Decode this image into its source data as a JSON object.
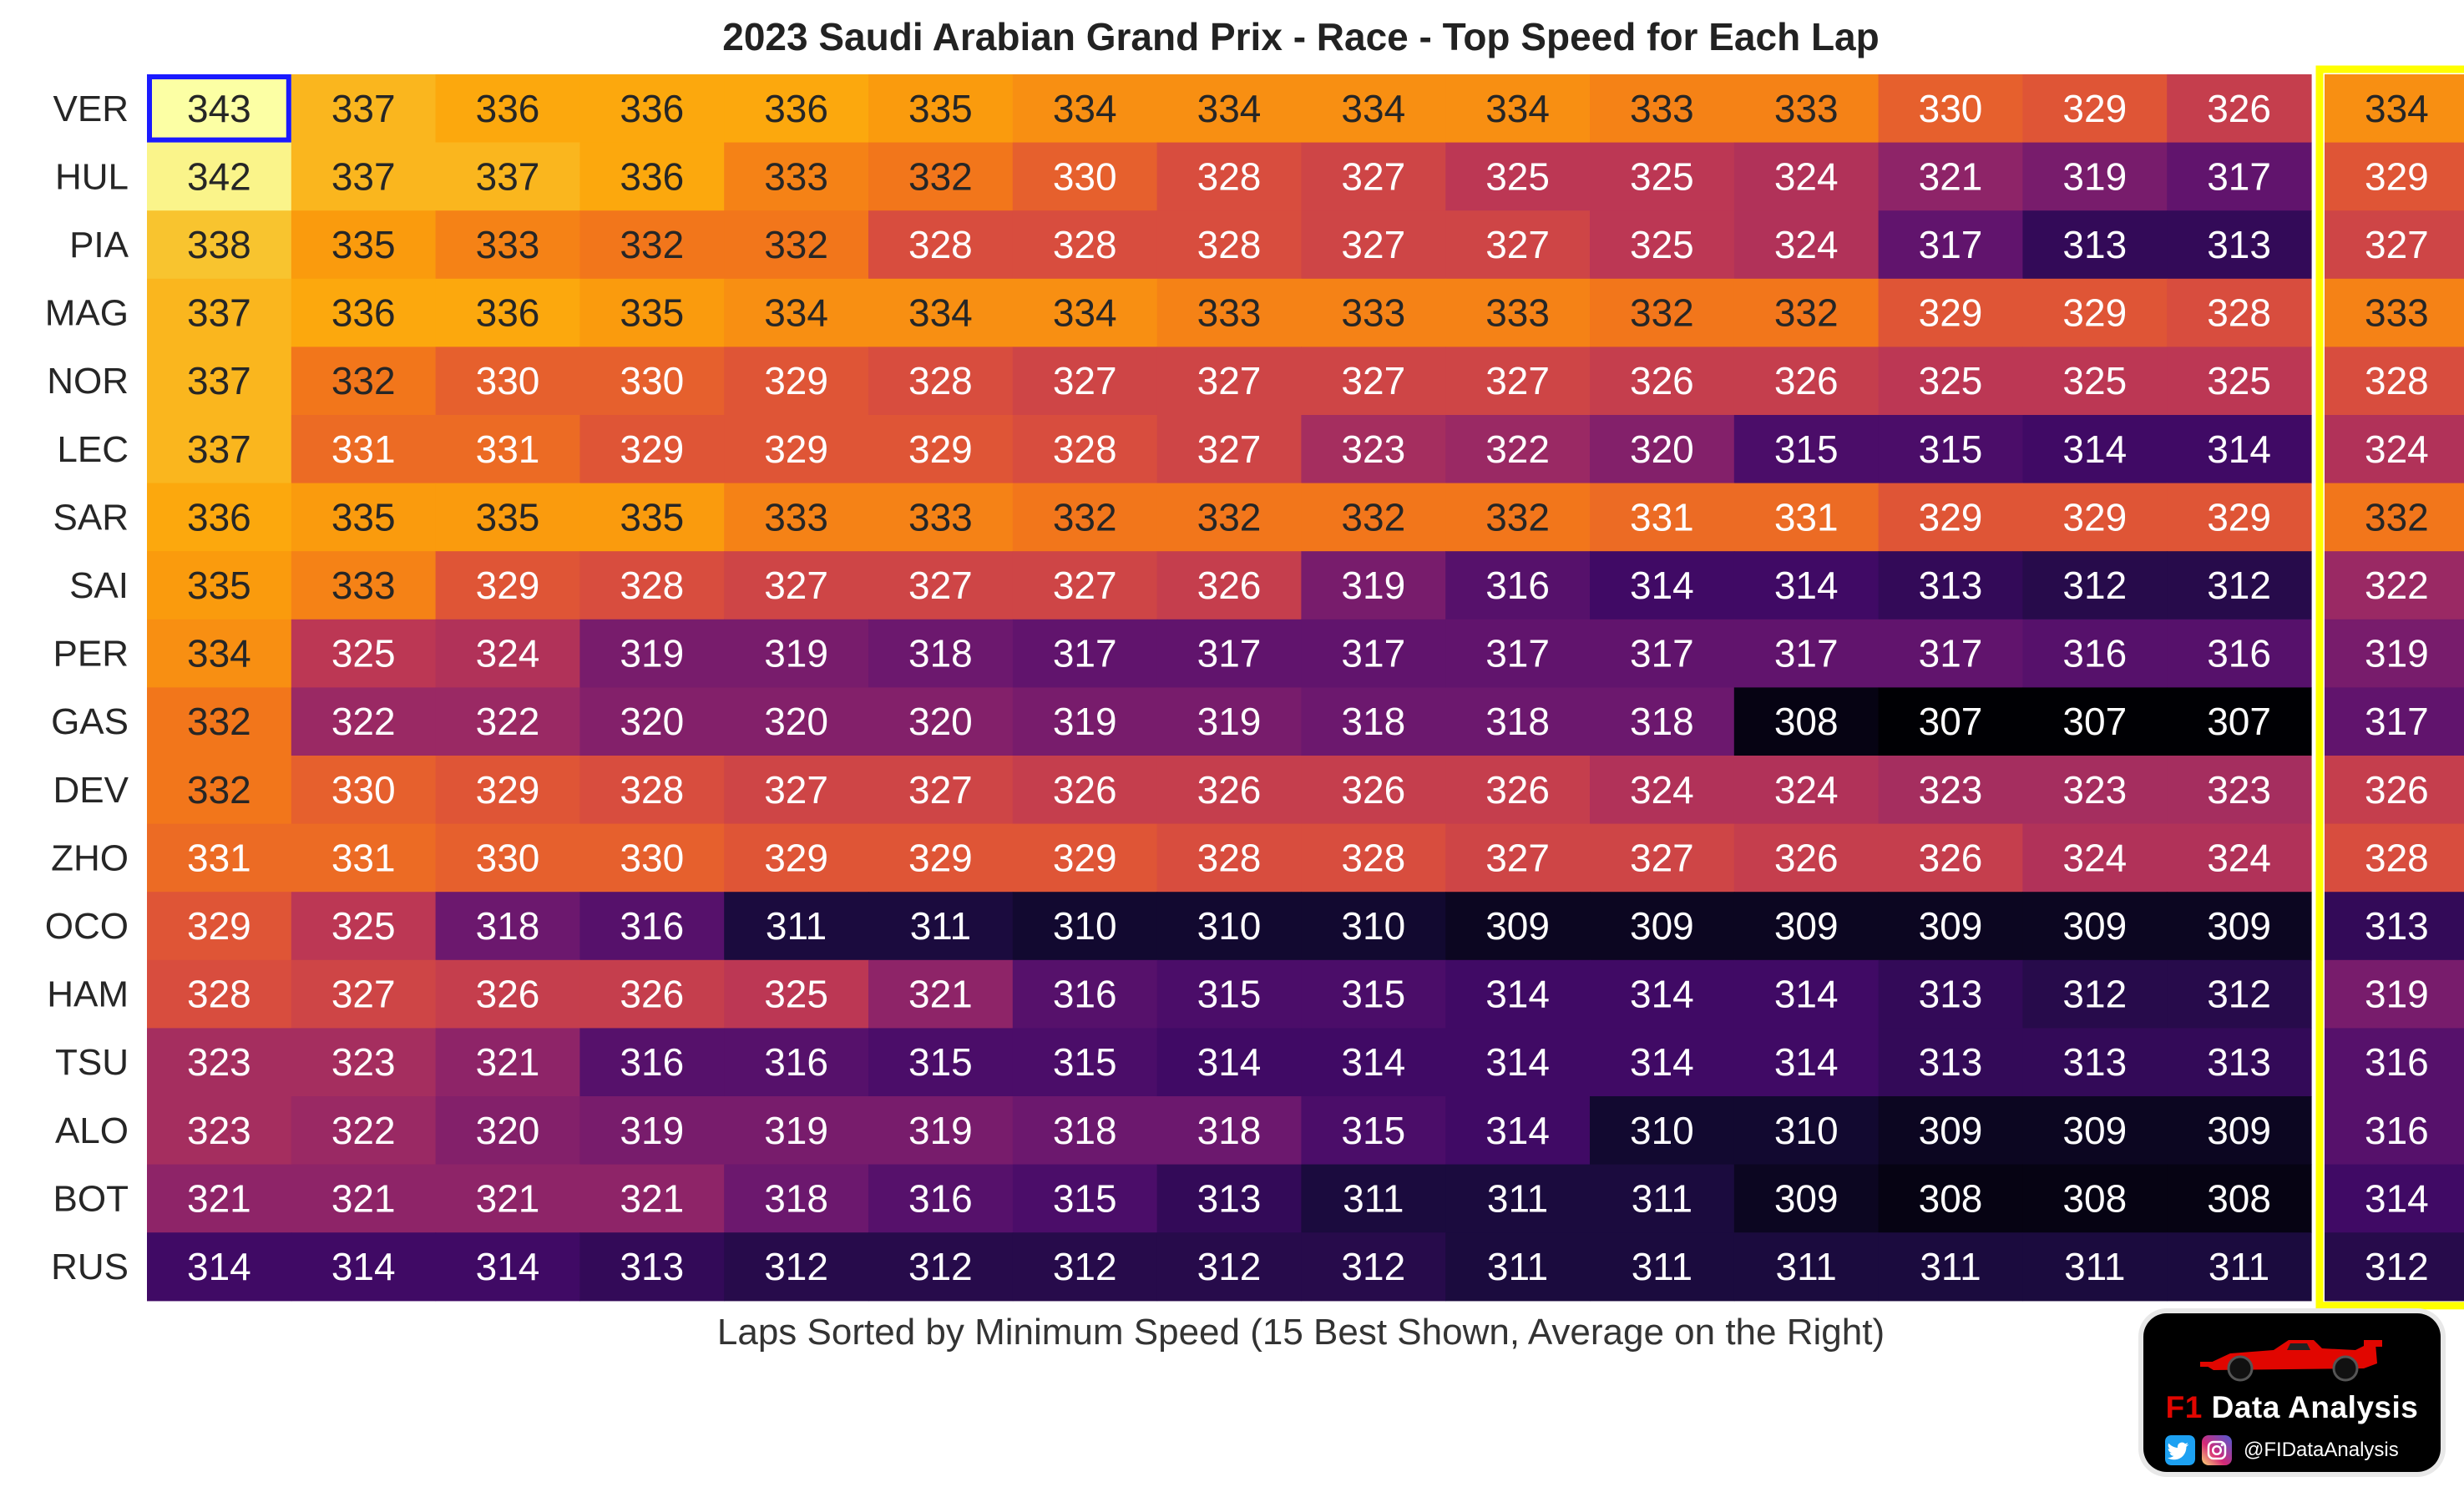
{
  "chart_data": {
    "type": "heatmap",
    "title": "2023 Saudi Arabian Grand Prix - Race - Top Speed for Each Lap",
    "xlabel": "Laps Sorted by Minimum Speed (15 Best Shown, Average on the Right)",
    "ylabel": "",
    "color_range": [
      307,
      343
    ],
    "colormap": "inferno",
    "rows": [
      "VER",
      "HUL",
      "PIA",
      "MAG",
      "NOR",
      "LEC",
      "SAR",
      "SAI",
      "PER",
      "GAS",
      "DEV",
      "ZHO",
      "OCO",
      "HAM",
      "TSU",
      "ALO",
      "BOT",
      "RUS"
    ],
    "values": [
      [
        343,
        337,
        336,
        336,
        336,
        335,
        334,
        334,
        334,
        334,
        333,
        333,
        330,
        329,
        326
      ],
      [
        342,
        337,
        337,
        336,
        333,
        332,
        330,
        328,
        327,
        325,
        325,
        324,
        321,
        319,
        317
      ],
      [
        338,
        335,
        333,
        332,
        332,
        328,
        328,
        328,
        327,
        327,
        325,
        324,
        317,
        313,
        313
      ],
      [
        337,
        336,
        336,
        335,
        334,
        334,
        334,
        333,
        333,
        333,
        332,
        332,
        329,
        329,
        328
      ],
      [
        337,
        332,
        330,
        330,
        329,
        328,
        327,
        327,
        327,
        327,
        326,
        326,
        325,
        325,
        325
      ],
      [
        337,
        331,
        331,
        329,
        329,
        329,
        328,
        327,
        323,
        322,
        320,
        315,
        315,
        314,
        314
      ],
      [
        336,
        335,
        335,
        335,
        333,
        333,
        332,
        332,
        332,
        332,
        331,
        331,
        329,
        329,
        329
      ],
      [
        335,
        333,
        329,
        328,
        327,
        327,
        327,
        326,
        319,
        316,
        314,
        314,
        313,
        312,
        312
      ],
      [
        334,
        325,
        324,
        319,
        319,
        318,
        317,
        317,
        317,
        317,
        317,
        317,
        317,
        316,
        316
      ],
      [
        332,
        322,
        322,
        320,
        320,
        320,
        319,
        319,
        318,
        318,
        318,
        308,
        307,
        307,
        307
      ],
      [
        332,
        330,
        329,
        328,
        327,
        327,
        326,
        326,
        326,
        326,
        324,
        324,
        323,
        323,
        323
      ],
      [
        331,
        331,
        330,
        330,
        329,
        329,
        329,
        328,
        328,
        327,
        327,
        326,
        326,
        324,
        324
      ],
      [
        329,
        325,
        318,
        316,
        311,
        311,
        310,
        310,
        310,
        309,
        309,
        309,
        309,
        309,
        309
      ],
      [
        328,
        327,
        326,
        326,
        325,
        321,
        316,
        315,
        315,
        314,
        314,
        314,
        313,
        312,
        312
      ],
      [
        323,
        323,
        321,
        316,
        316,
        315,
        315,
        314,
        314,
        314,
        314,
        314,
        313,
        313,
        313
      ],
      [
        323,
        322,
        320,
        319,
        319,
        319,
        318,
        318,
        315,
        314,
        310,
        310,
        309,
        309,
        309
      ],
      [
        321,
        321,
        321,
        321,
        318,
        316,
        315,
        313,
        311,
        311,
        311,
        309,
        308,
        308,
        308
      ],
      [
        314,
        314,
        314,
        313,
        312,
        312,
        312,
        312,
        312,
        311,
        311,
        311,
        311,
        311,
        311
      ]
    ],
    "averages": [
      334,
      329,
      327,
      333,
      328,
      324,
      332,
      322,
      319,
      317,
      326,
      328,
      313,
      319,
      316,
      316,
      314,
      312
    ],
    "highlight_max": {
      "row": 0,
      "col": 0,
      "color": "#1a1aff"
    },
    "highlight_average_color": "#ffff00"
  },
  "logo": {
    "prefix": "F1",
    "name": " Data Analysis",
    "handle": "@FIDataAnalysis",
    "icons": [
      "twitter-icon",
      "instagram-icon",
      "race-car-icon"
    ]
  }
}
